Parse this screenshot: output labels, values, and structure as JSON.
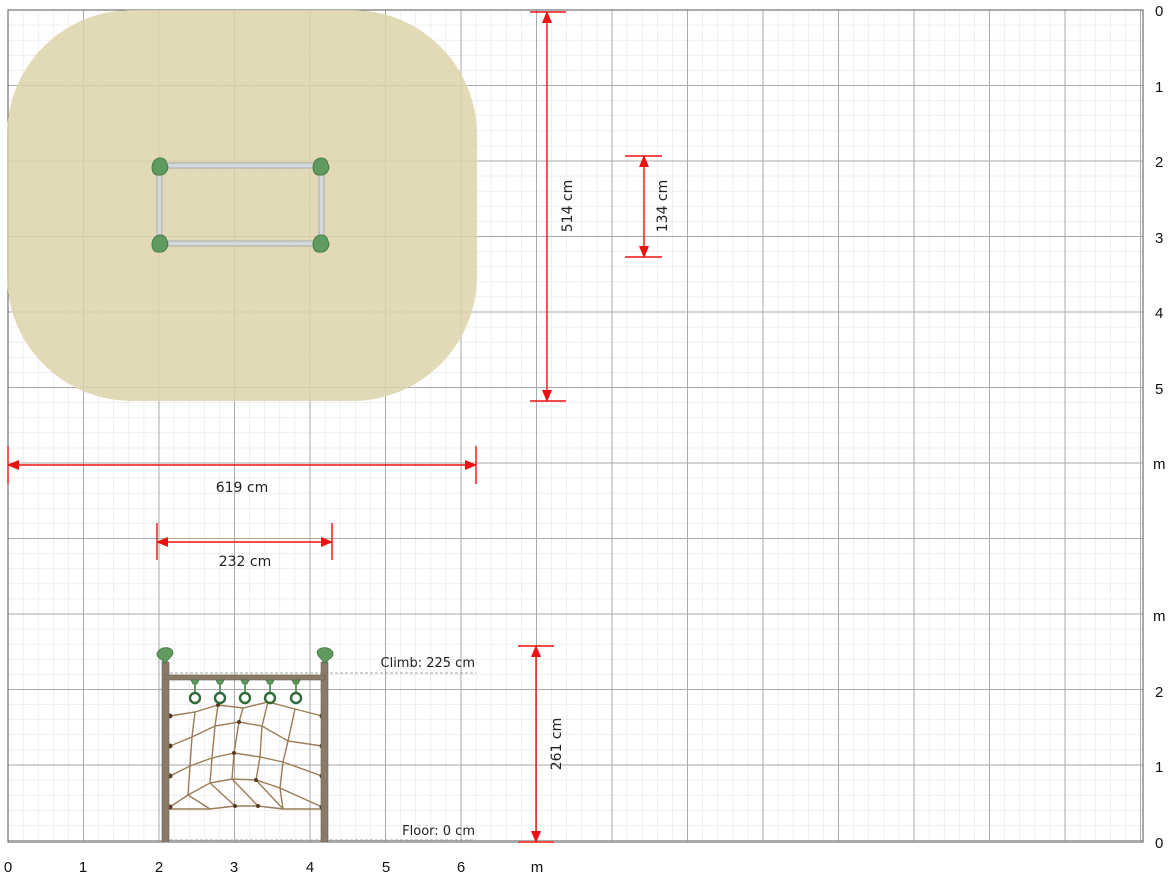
{
  "colors": {
    "grid_major": "#aaaaaa",
    "grid_minor": "#e6e6e6",
    "safety_zone": "#ddd3aa",
    "dimension": "#ee1111",
    "post": "#8a7a68",
    "frame_bar": "#d5d9dc",
    "foliage": "#5f9a5f",
    "net_rope": "#9b7c56",
    "reference_line": "#888888"
  },
  "x_axis": {
    "ticks": [
      "0",
      "1",
      "2",
      "3",
      "4",
      "5",
      "6"
    ],
    "unit": "m"
  },
  "plan_axis": {
    "ticks": [
      "0",
      "1",
      "2",
      "3",
      "4",
      "5"
    ],
    "unit": "m"
  },
  "elevation_axis": {
    "ticks": [
      "0",
      "1",
      "2"
    ],
    "unit": "m"
  },
  "dimensions": {
    "total_length": "514 cm",
    "frame_depth": "134 cm",
    "total_width": "619 cm",
    "frame_width": "232 cm",
    "total_height": "261 cm"
  },
  "annotations": {
    "climb_height": "Climb: 225 cm",
    "floor_height": "Floor: 0 cm"
  },
  "icons": {
    "top_cap": "leaf-cap-icon",
    "ring_handle": "ring-handle-icon"
  }
}
